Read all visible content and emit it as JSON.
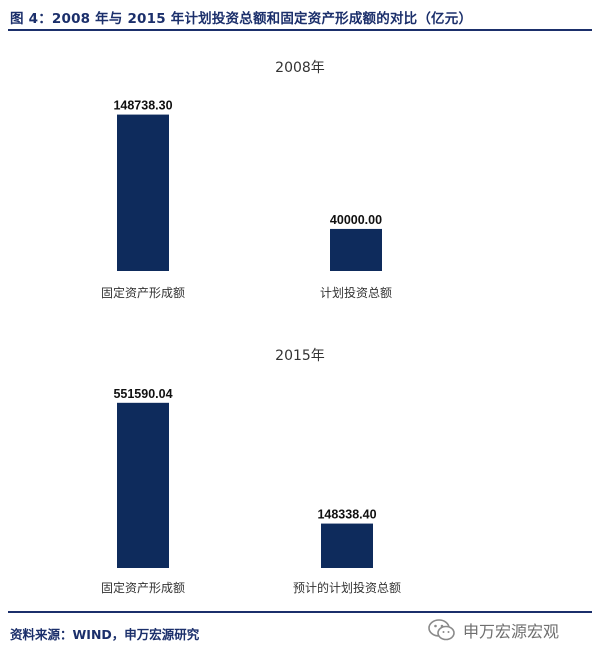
{
  "figure": {
    "title": "图 4：2008 年与 2015 年计划投资总额和固定资产形成额的对比（亿元）",
    "source": "资料来源：WIND，申万宏源研究",
    "watermark": "申万宏源宏观",
    "watermark_icon": "wechat-icon"
  },
  "colors": {
    "bar": "#0e2b5c",
    "accent": "#1b2f6b"
  },
  "chart_data": [
    {
      "type": "bar",
      "title": "2008年",
      "categories": [
        "固定资产形成额",
        "计划投资总额"
      ],
      "values": [
        148738.3,
        40000.0
      ],
      "labels": [
        "148738.30",
        "40000.00"
      ],
      "ylim": [
        0,
        155000
      ],
      "grid": false,
      "legend": "none"
    },
    {
      "type": "bar",
      "title": "2015年",
      "categories": [
        "固定资产形成额",
        "预计的计划投资总额"
      ],
      "values": [
        551590.04,
        148338.4
      ],
      "labels": [
        "551590.04",
        "148338.40"
      ],
      "ylim": [
        0,
        571000
      ],
      "grid": false,
      "legend": "none"
    }
  ]
}
